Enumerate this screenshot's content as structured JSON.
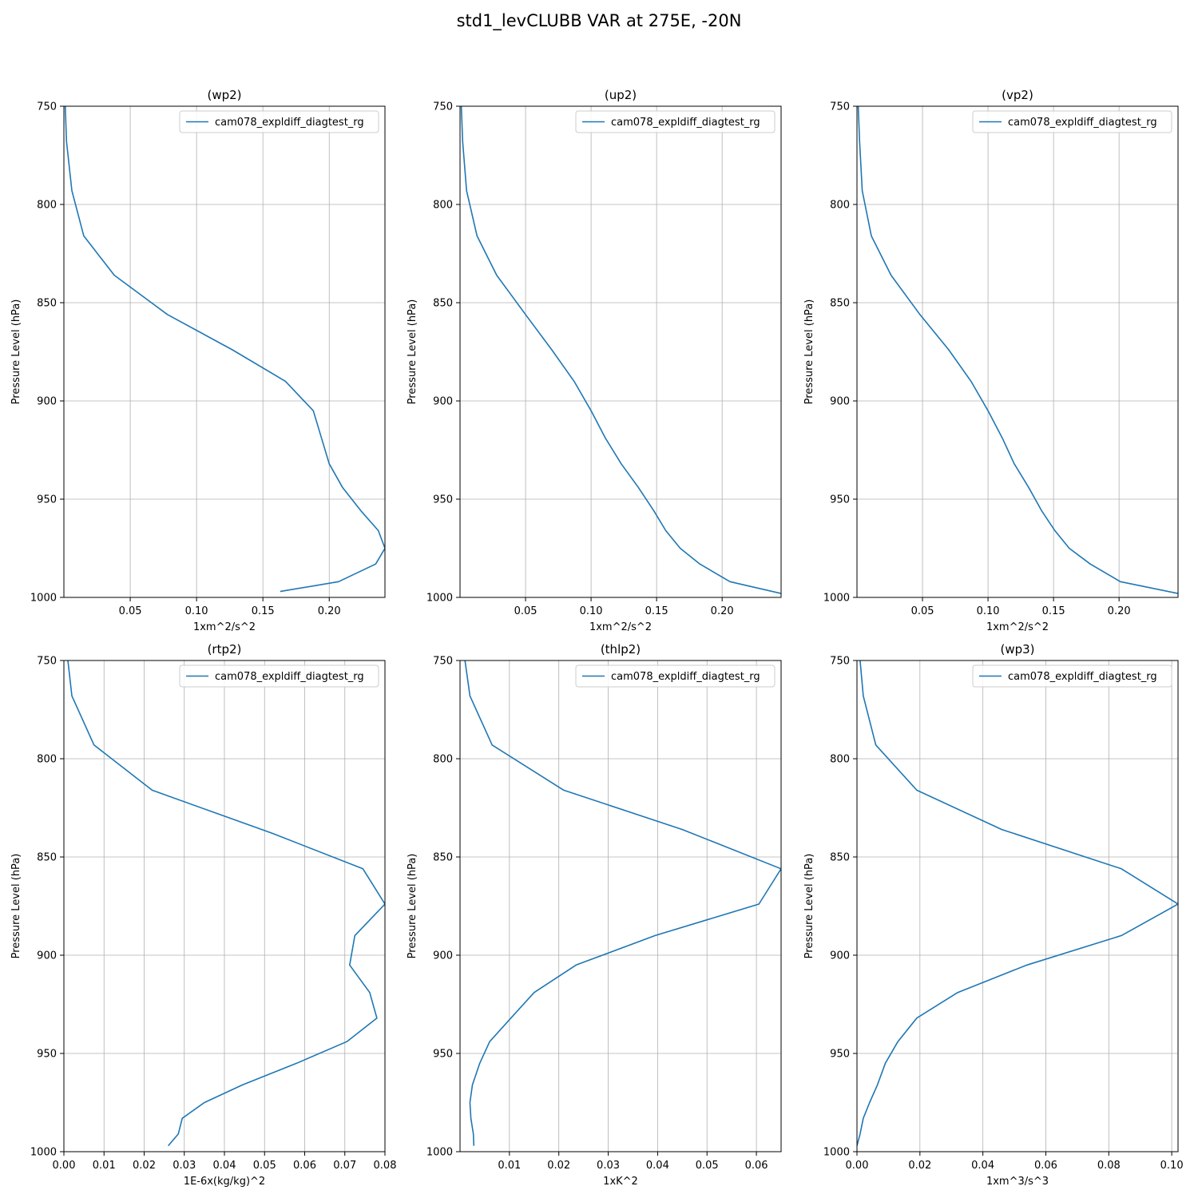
{
  "figure_title": "std1_levCLUBB VAR at 275E, -20N",
  "colors": {
    "series": "#1f77b4",
    "grid": "#b0b0b0",
    "axis": "#000000"
  },
  "chart_data": [
    {
      "type": "line",
      "title": "(wp2)",
      "xlabel": "1xm^2/s^2",
      "ylabel": "Pressure Level (hPa)",
      "xlim": [
        0.0,
        0.242
      ],
      "ylim": [
        1000,
        750
      ],
      "x_ticks": [
        0.05,
        0.1,
        0.15,
        0.2
      ],
      "x_tick_labels": [
        "0.05",
        "0.10",
        "0.15",
        "0.20"
      ],
      "y_ticks": [
        750,
        800,
        850,
        900,
        950,
        1000
      ],
      "y_tick_labels": [
        "750",
        "800",
        "850",
        "900",
        "950",
        "1000"
      ],
      "grid": true,
      "legend": "top-right",
      "series": [
        {
          "name": "cam078_expldiff_diagtest_rg",
          "x": [
            0.001,
            0.002,
            0.006,
            0.015,
            0.038,
            0.078,
            0.127,
            0.167,
            0.188,
            0.2,
            0.21,
            0.224,
            0.237,
            0.242,
            0.235,
            0.207,
            0.163
          ],
          "y": [
            750,
            768,
            793,
            816,
            836,
            856,
            874,
            890,
            905,
            932,
            944,
            956,
            966,
            975,
            983,
            992,
            997
          ]
        }
      ]
    },
    {
      "type": "line",
      "title": "(up2)",
      "xlabel": "1xm^2/s^2",
      "ylabel": "Pressure Level (hPa)",
      "xlim": [
        0.0,
        0.245
      ],
      "ylim": [
        1000,
        750
      ],
      "x_ticks": [
        0.05,
        0.1,
        0.15,
        0.2
      ],
      "x_tick_labels": [
        "0.05",
        "0.10",
        "0.15",
        "0.20"
      ],
      "y_ticks": [
        750,
        800,
        850,
        900,
        950,
        1000
      ],
      "y_tick_labels": [
        "750",
        "800",
        "850",
        "900",
        "950",
        "1000"
      ],
      "grid": true,
      "legend": "top-right",
      "series": [
        {
          "name": "cam078_expldiff_diagtest_rg",
          "x": [
            0.001,
            0.002,
            0.005,
            0.013,
            0.028,
            0.05,
            0.07,
            0.087,
            0.1,
            0.111,
            0.123,
            0.136,
            0.148,
            0.157,
            0.168,
            0.183,
            0.206,
            0.245
          ],
          "y": [
            750,
            768,
            793,
            816,
            836,
            856,
            874,
            890,
            905,
            919,
            932,
            944,
            956,
            966,
            975,
            983,
            992,
            998
          ]
        }
      ]
    },
    {
      "type": "line",
      "title": "(vp2)",
      "xlabel": "1xm^2/s^2",
      "ylabel": "Pressure Level (hPa)",
      "xlim": [
        0.0,
        0.245
      ],
      "ylim": [
        1000,
        750
      ],
      "x_ticks": [
        0.05,
        0.1,
        0.15,
        0.2
      ],
      "x_tick_labels": [
        "0.05",
        "0.10",
        "0.15",
        "0.20"
      ],
      "y_ticks": [
        750,
        800,
        850,
        900,
        950,
        1000
      ],
      "y_tick_labels": [
        "750",
        "800",
        "850",
        "900",
        "950",
        "1000"
      ],
      "grid": true,
      "legend": "top-right",
      "series": [
        {
          "name": "cam078_expldiff_diagtest_rg",
          "x": [
            0.001,
            0.002,
            0.004,
            0.011,
            0.026,
            0.048,
            0.07,
            0.087,
            0.1,
            0.111,
            0.12,
            0.131,
            0.141,
            0.151,
            0.162,
            0.178,
            0.201,
            0.245
          ],
          "y": [
            750,
            768,
            793,
            816,
            836,
            856,
            874,
            890,
            905,
            919,
            932,
            944,
            956,
            966,
            975,
            983,
            992,
            998
          ]
        }
      ]
    },
    {
      "type": "line",
      "title": "(rtp2)",
      "xlabel": "1E-6x(kg/kg)^2",
      "ylabel": "Pressure Level (hPa)",
      "xlim": [
        0.0,
        0.08
      ],
      "ylim": [
        1000,
        750
      ],
      "x_ticks": [
        0.0,
        0.01,
        0.02,
        0.03,
        0.04,
        0.05,
        0.06,
        0.07,
        0.08
      ],
      "x_tick_labels": [
        "0.00",
        "0.01",
        "0.02",
        "0.03",
        "0.04",
        "0.05",
        "0.06",
        "0.07",
        "0.08"
      ],
      "y_ticks": [
        750,
        800,
        850,
        900,
        950,
        1000
      ],
      "y_tick_labels": [
        "750",
        "800",
        "850",
        "900",
        "950",
        "1000"
      ],
      "grid": true,
      "legend": "top-right",
      "series": [
        {
          "name": "cam078_expldiff_diagtest_rg",
          "x": [
            0.001,
            0.002,
            0.0075,
            0.022,
            0.052,
            0.0745,
            0.08,
            0.0725,
            0.0712,
            0.0762,
            0.078,
            0.0705,
            0.058,
            0.0445,
            0.035,
            0.0295,
            0.0285,
            0.026
          ],
          "y": [
            750,
            768,
            793,
            816,
            838,
            856,
            874,
            890,
            905,
            919,
            932,
            944,
            955,
            966,
            975,
            983,
            991,
            997
          ]
        }
      ]
    },
    {
      "type": "line",
      "title": "(thlp2)",
      "xlabel": "1xK^2",
      "ylabel": "Pressure Level (hPa)",
      "xlim": [
        0.0,
        0.065
      ],
      "ylim": [
        1000,
        750
      ],
      "x_ticks": [
        0.01,
        0.02,
        0.03,
        0.04,
        0.05,
        0.06
      ],
      "x_tick_labels": [
        "0.01",
        "0.02",
        "0.03",
        "0.04",
        "0.05",
        "0.06"
      ],
      "y_ticks": [
        750,
        800,
        850,
        900,
        950,
        1000
      ],
      "y_tick_labels": [
        "750",
        "800",
        "850",
        "900",
        "950",
        "1000"
      ],
      "grid": true,
      "legend": "top-right",
      "series": [
        {
          "name": "cam078_expldiff_diagtest_rg",
          "x": [
            0.001,
            0.002,
            0.0065,
            0.021,
            0.045,
            0.065,
            0.0605,
            0.0395,
            0.0235,
            0.015,
            0.0103,
            0.006,
            0.004,
            0.0025,
            0.002,
            0.0022,
            0.0027,
            0.0028
          ],
          "y": [
            750,
            768,
            793,
            816,
            836,
            856,
            874,
            890,
            905,
            919,
            932,
            944,
            955,
            966,
            975,
            983,
            991,
            997
          ]
        }
      ]
    },
    {
      "type": "line",
      "title": "(wp3)",
      "xlabel": "1xm^3/s^3",
      "ylabel": "Pressure Level (hPa)",
      "xlim": [
        0.0,
        0.102
      ],
      "ylim": [
        1000,
        750
      ],
      "x_ticks": [
        0.0,
        0.02,
        0.04,
        0.06,
        0.08,
        0.1
      ],
      "x_tick_labels": [
        "0.00",
        "0.02",
        "0.04",
        "0.06",
        "0.08",
        "0.10"
      ],
      "y_ticks": [
        750,
        800,
        850,
        900,
        950,
        1000
      ],
      "y_tick_labels": [
        "750",
        "800",
        "850",
        "900",
        "950",
        "1000"
      ],
      "grid": true,
      "legend": "top-right",
      "series": [
        {
          "name": "cam078_expldiff_diagtest_rg",
          "x": [
            0.001,
            0.002,
            0.006,
            0.019,
            0.046,
            0.084,
            0.102,
            0.084,
            0.054,
            0.032,
            0.019,
            0.013,
            0.009,
            0.0065,
            0.004,
            0.002,
            0.001,
            0.0
          ],
          "y": [
            750,
            768,
            793,
            816,
            836,
            856,
            874,
            890,
            905,
            919,
            932,
            944,
            955,
            966,
            975,
            983,
            991,
            997
          ]
        }
      ]
    }
  ]
}
